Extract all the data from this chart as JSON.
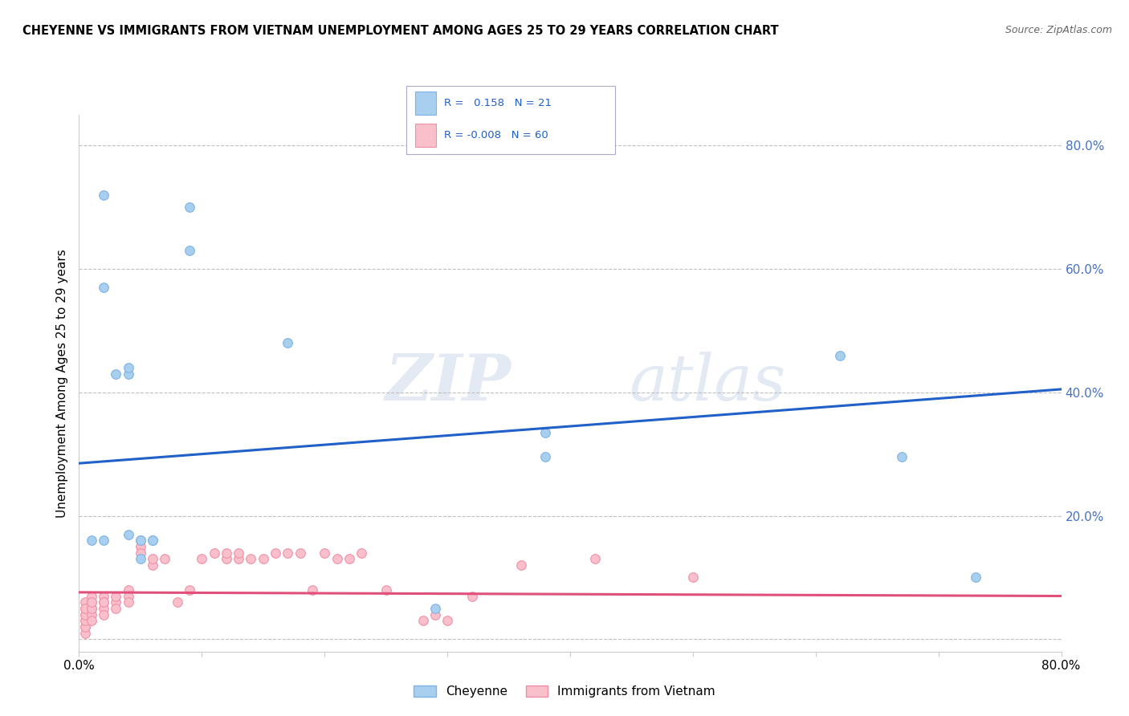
{
  "title": "CHEYENNE VS IMMIGRANTS FROM VIETNAM UNEMPLOYMENT AMONG AGES 25 TO 29 YEARS CORRELATION CHART",
  "source": "Source: ZipAtlas.com",
  "ylabel": "Unemployment Among Ages 25 to 29 years",
  "xlim": [
    0.0,
    0.8
  ],
  "ylim": [
    -0.02,
    0.85
  ],
  "yticks": [
    0.0,
    0.2,
    0.4,
    0.6,
    0.8
  ],
  "ytick_labels": [
    "",
    "20.0%",
    "40.0%",
    "60.0%",
    "80.0%"
  ],
  "xticks": [
    0.0,
    0.1,
    0.2,
    0.3,
    0.4,
    0.5,
    0.6,
    0.7,
    0.8
  ],
  "xtick_labels": [
    "0.0%",
    "",
    "",
    "",
    "",
    "",
    "",
    "",
    "80.0%"
  ],
  "cheyenne_color": "#A8CFEE",
  "cheyenne_edge": "#7EB3E8",
  "vietnam_color": "#F9BFCA",
  "vietnam_edge": "#F090A8",
  "trend_blue": "#2060C8",
  "trend_pink": "#E0507A",
  "legend_R1": "R =   0.158",
  "legend_N1": "N = 21",
  "legend_R2": "R = -0.008",
  "legend_N2": "N = 60",
  "cheyenne_x": [
    0.01,
    0.02,
    0.02,
    0.03,
    0.04,
    0.04,
    0.04,
    0.02,
    0.09,
    0.09,
    0.17,
    0.38,
    0.38,
    0.62,
    0.67,
    0.73,
    0.05,
    0.05,
    0.06,
    0.06,
    0.29
  ],
  "cheyenne_y": [
    0.16,
    0.72,
    0.57,
    0.43,
    0.43,
    0.44,
    0.17,
    0.16,
    0.7,
    0.63,
    0.48,
    0.335,
    0.295,
    0.46,
    0.295,
    0.1,
    0.16,
    0.13,
    0.16,
    0.16,
    0.05
  ],
  "vietnam_x": [
    0.005,
    0.005,
    0.005,
    0.005,
    0.005,
    0.005,
    0.005,
    0.005,
    0.005,
    0.005,
    0.01,
    0.01,
    0.01,
    0.01,
    0.01,
    0.01,
    0.01,
    0.02,
    0.02,
    0.02,
    0.02,
    0.02,
    0.03,
    0.03,
    0.03,
    0.04,
    0.04,
    0.04,
    0.05,
    0.05,
    0.05,
    0.06,
    0.06,
    0.07,
    0.08,
    0.09,
    0.1,
    0.11,
    0.12,
    0.12,
    0.13,
    0.13,
    0.14,
    0.15,
    0.16,
    0.17,
    0.18,
    0.19,
    0.2,
    0.21,
    0.22,
    0.23,
    0.25,
    0.28,
    0.29,
    0.3,
    0.32,
    0.36,
    0.42,
    0.5
  ],
  "vietnam_y": [
    0.03,
    0.04,
    0.05,
    0.02,
    0.06,
    0.01,
    0.02,
    0.03,
    0.04,
    0.05,
    0.06,
    0.07,
    0.05,
    0.04,
    0.03,
    0.05,
    0.06,
    0.07,
    0.06,
    0.05,
    0.04,
    0.06,
    0.06,
    0.07,
    0.05,
    0.08,
    0.07,
    0.06,
    0.15,
    0.16,
    0.14,
    0.12,
    0.13,
    0.13,
    0.06,
    0.08,
    0.13,
    0.14,
    0.13,
    0.14,
    0.13,
    0.14,
    0.13,
    0.13,
    0.14,
    0.14,
    0.14,
    0.08,
    0.14,
    0.13,
    0.13,
    0.14,
    0.08,
    0.03,
    0.04,
    0.03,
    0.07,
    0.12,
    0.13,
    0.1
  ],
  "cheyenne_trend_x": [
    0.0,
    0.8
  ],
  "cheyenne_trend_y": [
    0.285,
    0.405
  ],
  "vietnam_trend_x": [
    0.0,
    0.8
  ],
  "vietnam_trend_y": [
    0.076,
    0.07
  ],
  "watermark_zip": "ZIP",
  "watermark_atlas": "atlas",
  "figsize": [
    14.06,
    8.92
  ],
  "dpi": 100
}
